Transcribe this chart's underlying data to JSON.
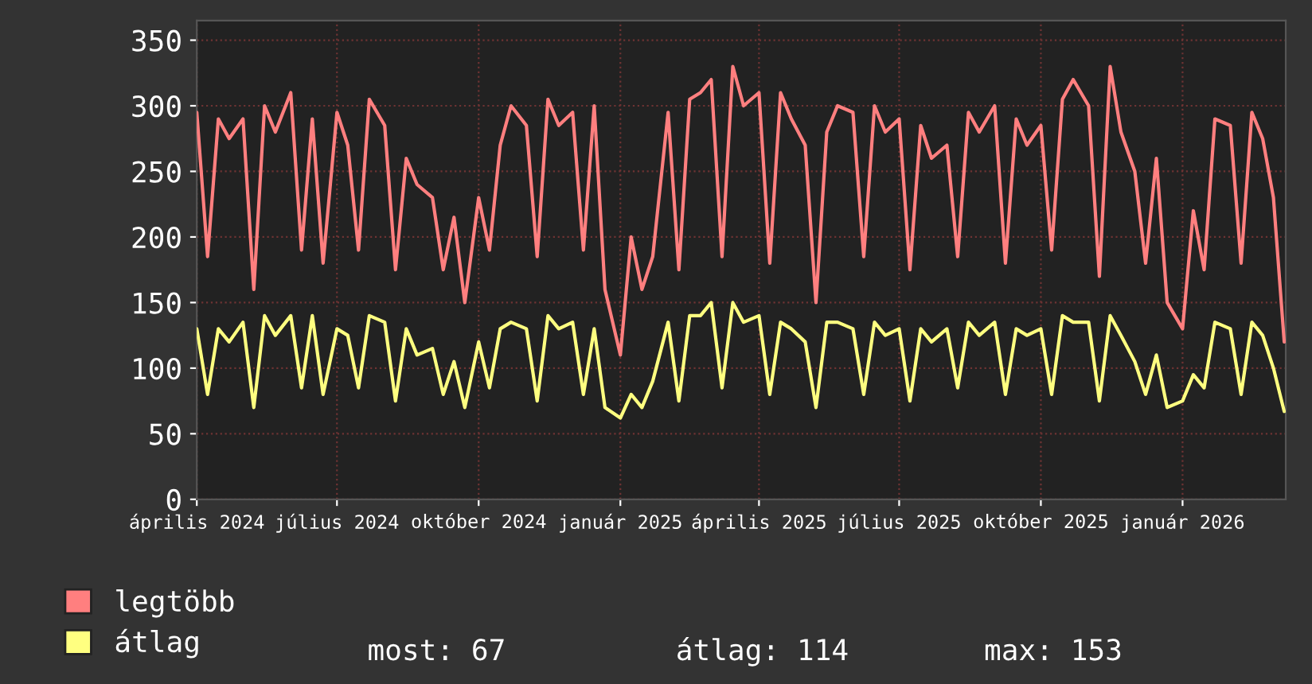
{
  "chart_data": {
    "type": "line",
    "x": [
      "2024-04-01",
      "2024-04-08",
      "2024-04-15",
      "2024-04-22",
      "2024-05-01",
      "2024-05-08",
      "2024-05-15",
      "2024-05-22",
      "2024-06-01",
      "2024-06-08",
      "2024-06-15",
      "2024-06-22",
      "2024-07-01",
      "2024-07-08",
      "2024-07-15",
      "2024-07-22",
      "2024-08-01",
      "2024-08-08",
      "2024-08-15",
      "2024-08-22",
      "2024-09-01",
      "2024-09-08",
      "2024-09-15",
      "2024-09-22",
      "2024-10-01",
      "2024-10-08",
      "2024-10-15",
      "2024-10-22",
      "2024-11-01",
      "2024-11-08",
      "2024-11-15",
      "2024-11-22",
      "2024-12-01",
      "2024-12-08",
      "2024-12-15",
      "2024-12-22",
      "2025-01-01",
      "2025-01-08",
      "2025-01-15",
      "2025-01-22",
      "2025-02-01",
      "2025-02-08",
      "2025-02-15",
      "2025-02-22",
      "2025-03-01",
      "2025-03-08",
      "2025-03-15",
      "2025-03-22",
      "2025-04-01",
      "2025-04-08",
      "2025-04-15",
      "2025-04-22",
      "2025-05-01",
      "2025-05-08",
      "2025-05-15",
      "2025-05-22",
      "2025-06-01",
      "2025-06-08",
      "2025-06-15",
      "2025-06-22",
      "2025-07-01",
      "2025-07-08",
      "2025-07-15",
      "2025-07-22",
      "2025-08-01",
      "2025-08-08",
      "2025-08-15",
      "2025-08-22",
      "2025-09-01",
      "2025-09-08",
      "2025-09-15",
      "2025-09-22",
      "2025-10-01",
      "2025-10-08",
      "2025-10-15",
      "2025-10-22",
      "2025-11-01",
      "2025-11-08",
      "2025-11-15",
      "2025-11-22",
      "2025-12-01",
      "2025-12-08",
      "2025-12-15",
      "2025-12-22",
      "2026-01-01",
      "2026-01-08",
      "2026-01-15",
      "2026-01-22",
      "2026-02-01",
      "2026-02-08",
      "2026-02-15",
      "2026-02-22",
      "2026-03-01",
      "2026-03-08"
    ],
    "series": [
      {
        "name": "legtöbb",
        "color": "#ff7f7f",
        "values": [
          295,
          185,
          290,
          275,
          290,
          160,
          300,
          280,
          310,
          190,
          290,
          180,
          295,
          270,
          190,
          305,
          285,
          175,
          260,
          240,
          230,
          175,
          215,
          150,
          230,
          190,
          270,
          300,
          285,
          185,
          305,
          285,
          295,
          190,
          300,
          160,
          110,
          200,
          160,
          185,
          295,
          175,
          305,
          310,
          320,
          185,
          330,
          300,
          310,
          180,
          310,
          290,
          270,
          150,
          280,
          300,
          295,
          185,
          300,
          280,
          290,
          175,
          285,
          260,
          270,
          185,
          295,
          280,
          300,
          180,
          290,
          270,
          285,
          190,
          305,
          320,
          300,
          170,
          330,
          280,
          250,
          180,
          260,
          150,
          130,
          220,
          175,
          290,
          285,
          180,
          295,
          275,
          230,
          120
        ]
      },
      {
        "name": "átlag",
        "color": "#ffff80",
        "values": [
          130,
          80,
          130,
          120,
          135,
          70,
          140,
          125,
          140,
          85,
          140,
          80,
          130,
          125,
          85,
          140,
          135,
          75,
          130,
          110,
          115,
          80,
          105,
          70,
          120,
          85,
          130,
          135,
          130,
          75,
          140,
          130,
          135,
          80,
          130,
          70,
          62,
          80,
          70,
          90,
          135,
          75,
          140,
          140,
          150,
          85,
          150,
          135,
          140,
          80,
          135,
          130,
          120,
          70,
          135,
          135,
          130,
          80,
          135,
          125,
          130,
          75,
          130,
          120,
          130,
          85,
          135,
          125,
          135,
          80,
          130,
          125,
          130,
          80,
          140,
          135,
          135,
          75,
          140,
          125,
          105,
          80,
          110,
          70,
          75,
          95,
          85,
          135,
          130,
          80,
          135,
          125,
          100,
          67
        ]
      }
    ],
    "xlim": [
      "2024-04-01",
      "2026-03-09"
    ],
    "xticks": [
      {
        "value": "2024-04-01",
        "label": "április 2024"
      },
      {
        "value": "2024-07-01",
        "label": "július 2024"
      },
      {
        "value": "2024-10-01",
        "label": "október 2024"
      },
      {
        "value": "2025-01-01",
        "label": "január 2025"
      },
      {
        "value": "2025-04-01",
        "label": "április 2025"
      },
      {
        "value": "2025-07-01",
        "label": "július 2025"
      },
      {
        "value": "2025-10-01",
        "label": "október 2025"
      },
      {
        "value": "2026-01-01",
        "label": "január 2026"
      }
    ],
    "ylim": [
      0,
      365
    ],
    "yticks": [
      0,
      50,
      100,
      150,
      200,
      250,
      300,
      350
    ],
    "grid": true,
    "legend": "bottom",
    "annotations": [
      "most: 67",
      "átlag: 114",
      "max: 153"
    ]
  }
}
